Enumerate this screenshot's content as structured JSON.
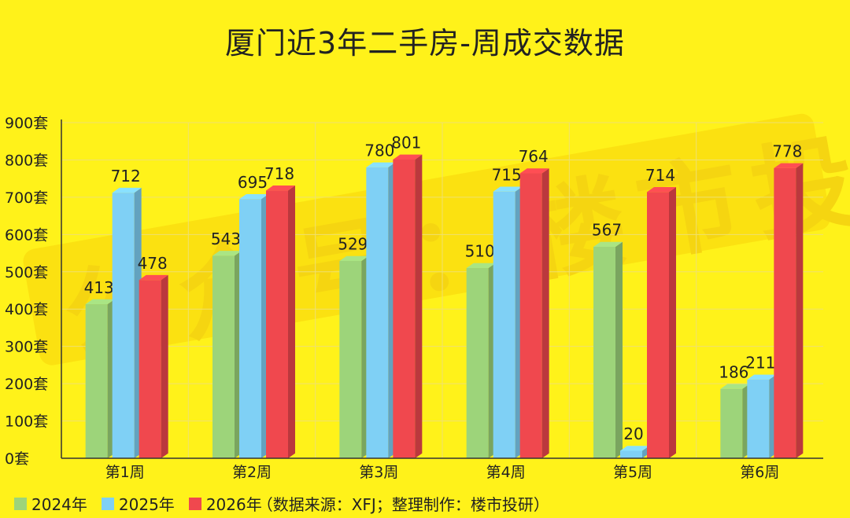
{
  "title": "厦门近3年二手房-周成交数据",
  "watermark": "公众号：楼市投研",
  "legend": {
    "items": [
      {
        "label": "2024年",
        "color": "#9DD47A"
      },
      {
        "label": "2025年",
        "color": "#7FD0F5"
      },
      {
        "label": "2026年",
        "color": "#F0484E"
      }
    ],
    "note": "（数据来源：XFJ；整理制作：楼市投研）"
  },
  "chart_data": {
    "type": "bar",
    "categories": [
      "第1周",
      "第2周",
      "第3周",
      "第4周",
      "第5周",
      "第6周"
    ],
    "series": [
      {
        "name": "2024年",
        "values": [
          413,
          543,
          529,
          510,
          567,
          186
        ],
        "color": "#9DD47A"
      },
      {
        "name": "2025年",
        "values": [
          712,
          695,
          780,
          715,
          20,
          211
        ],
        "color": "#7FD0F5"
      },
      {
        "name": "2026年",
        "values": [
          478,
          718,
          801,
          764,
          714,
          778
        ],
        "color": "#F0484E"
      }
    ],
    "yticks": [
      "0套",
      "100套",
      "200套",
      "300套",
      "400套",
      "500套",
      "600套",
      "700套",
      "800套",
      "900套"
    ],
    "ylim": [
      0,
      900
    ],
    "grid": true
  }
}
